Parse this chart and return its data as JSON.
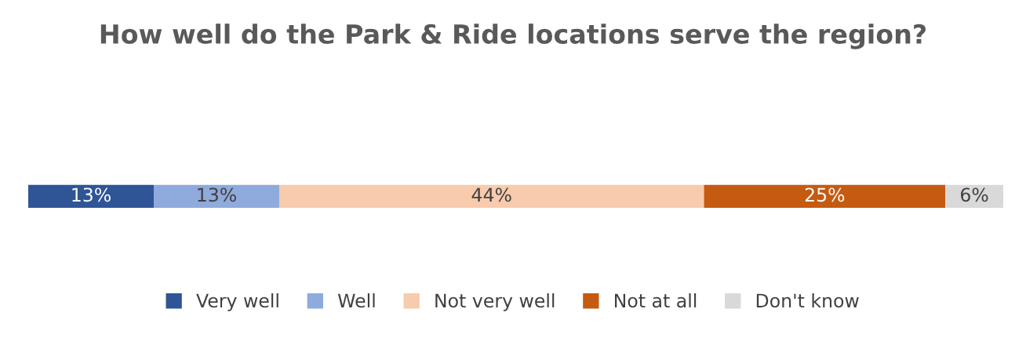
{
  "chart_data": {
    "type": "bar",
    "title": "How well do the Park & Ride locations serve the region?",
    "orientation": "horizontal",
    "stacked": true,
    "categories": [
      null
    ],
    "series": [
      {
        "name": "Very well",
        "color": "#2f5597",
        "values": [
          13
        ],
        "value_labels": [
          "13%"
        ]
      },
      {
        "name": "Well",
        "color": "#8faadc",
        "values": [
          13
        ],
        "value_labels": [
          "13%"
        ]
      },
      {
        "name": "Not very well",
        "color": "#f8cbad",
        "values": [
          44
        ],
        "value_labels": [
          "44%"
        ]
      },
      {
        "name": "Not at all",
        "color": "#c55a11",
        "values": [
          25
        ],
        "value_labels": [
          "25%"
        ]
      },
      {
        "name": "Don't know",
        "color": "#d9d9d9",
        "values": [
          6
        ],
        "value_labels": [
          "6%"
        ]
      }
    ],
    "legend": "bottom"
  }
}
